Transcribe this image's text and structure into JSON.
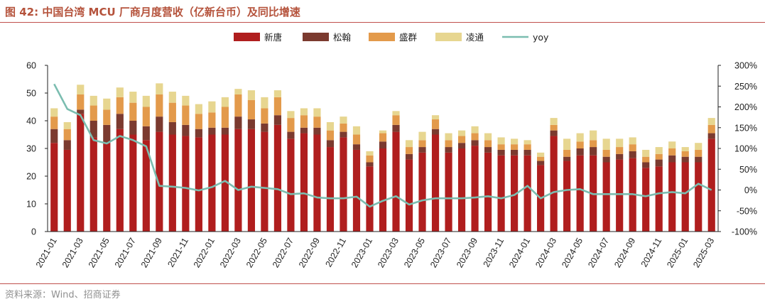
{
  "header": {
    "title": "图 42:  中国台湾 MCU 厂商月度营收（亿新台币）及同比增速"
  },
  "footer": {
    "source": "资料来源：Wind、招商证券"
  },
  "chart_data": {
    "type": "bar",
    "stacked": true,
    "title": "",
    "categories": [
      "2021-01",
      "2021-02",
      "2021-03",
      "2021-04",
      "2021-05",
      "2021-06",
      "2021-07",
      "2021-08",
      "2021-09",
      "2021-10",
      "2021-11",
      "2021-12",
      "2022-01",
      "2022-02",
      "2022-03",
      "2022-04",
      "2022-05",
      "2022-06",
      "2022-07",
      "2022-08",
      "2022-09",
      "2022-10",
      "2022-11",
      "2022-12",
      "2023-01",
      "2023-02",
      "2023-03",
      "2023-04",
      "2023-05",
      "2023-06",
      "2023-07",
      "2023-08",
      "2023-09",
      "2023-10",
      "2023-11",
      "2023-12",
      "2024-01",
      "2024-02",
      "2024-03",
      "2024-04",
      "2024-05",
      "2024-06",
      "2024-07",
      "2024-08",
      "2024-09",
      "2024-10",
      "2024-11",
      "2024-12",
      "2025-01",
      "2025-02",
      "2025-03"
    ],
    "tick_labels": [
      "2021-01",
      "2021-03",
      "2021-05",
      "2021-07",
      "2021-09",
      "2021-11",
      "2022-01",
      "2022-03",
      "2022-05",
      "2022-07",
      "2022-09",
      "2022-11",
      "2023-01",
      "2023-03",
      "2023-05",
      "2023-07",
      "2023-09",
      "2023-11",
      "2024-01",
      "2024-03",
      "2024-05",
      "2024-07",
      "2024-09",
      "2024-11",
      "2025-01",
      "2025-03"
    ],
    "series": [
      {
        "name": "新唐",
        "color": "#b01e1e",
        "values": [
          32,
          29.5,
          42.5,
          34,
          32,
          37,
          35,
          33,
          36,
          35,
          34.5,
          34,
          35,
          35,
          37,
          37,
          36,
          38.5,
          33.5,
          35.5,
          35,
          30.5,
          34,
          29.5,
          23.5,
          30,
          36,
          26,
          28.5,
          35,
          28.5,
          30,
          31,
          28.5,
          27.5,
          27.5,
          27.5,
          24,
          34.5,
          25.5,
          27.5,
          27.5,
          25,
          26,
          26.5,
          23,
          23.5,
          25,
          25,
          25,
          33.5
        ]
      },
      {
        "name": "松翰",
        "color": "#7b3a2f",
        "values": [
          5,
          3.5,
          1.5,
          6,
          6.5,
          5.5,
          5,
          5,
          5.5,
          4.5,
          4,
          3,
          2.5,
          2.5,
          4.5,
          3.5,
          3,
          3.5,
          2.5,
          2,
          2.5,
          2.5,
          2,
          2,
          1.5,
          2.5,
          2.5,
          2,
          2,
          2,
          2,
          2,
          2,
          2,
          2,
          2,
          2,
          1.5,
          2,
          1.5,
          2.5,
          3,
          2,
          2,
          2.5,
          2,
          2.5,
          2.5,
          2,
          2,
          2
        ]
      },
      {
        "name": "盛群",
        "color": "#e39a4b",
        "values": [
          4.5,
          4,
          5.5,
          5.5,
          5.5,
          6,
          6.5,
          7,
          8,
          7,
          7,
          5.5,
          5.5,
          7.5,
          8,
          7,
          5.5,
          6.5,
          5,
          4.5,
          4,
          3.5,
          3,
          3.5,
          2.5,
          3,
          3.5,
          2.5,
          2.5,
          3.5,
          2.5,
          2.5,
          2.5,
          2.5,
          2,
          2,
          2,
          1.5,
          2,
          2.5,
          2.5,
          2.5,
          2.5,
          2.5,
          2.5,
          2,
          2,
          2.5,
          2,
          2.5,
          3
        ]
      },
      {
        "name": "凌通",
        "color": "#e7d690",
        "values": [
          3,
          2.5,
          3.5,
          3.5,
          4,
          3.5,
          4,
          4,
          4,
          4,
          3.5,
          3.5,
          4,
          3.5,
          2,
          3.5,
          4,
          2.5,
          2.5,
          2.5,
          3,
          3,
          2.5,
          3,
          1.5,
          1,
          1.5,
          2.5,
          3,
          1.5,
          2.5,
          2,
          2.5,
          2.5,
          2.5,
          2,
          1.5,
          1.5,
          2.5,
          4,
          3,
          3.5,
          4,
          3,
          2.5,
          2.5,
          2.5,
          2.5,
          1.5,
          2.5,
          2.5
        ]
      },
      {
        "name": "yoy",
        "type": "line",
        "color": "#7bbdb0",
        "axis": "right",
        "unit": "%",
        "values": [
          255,
          195,
          180,
          120,
          112,
          130,
          120,
          105,
          10,
          8,
          5,
          -1,
          7,
          22,
          0,
          8,
          5,
          2,
          -10,
          -8,
          -18,
          -20,
          -20,
          -16,
          -40,
          -26,
          -15,
          -35,
          -25,
          -20,
          -20,
          -20,
          -18,
          -15,
          -20,
          -12,
          10,
          -20,
          -5,
          0,
          2,
          -10,
          -10,
          -10,
          -10,
          -15,
          -8,
          -5,
          -8,
          15,
          0
        ]
      }
    ],
    "ylim": [
      0,
      60
    ],
    "y_ticks": [
      "0",
      "10",
      "20",
      "30",
      "40",
      "50",
      "60"
    ],
    "y2lim": [
      -100,
      300
    ],
    "y2_ticks": [
      "-100%",
      "-50%",
      "0%",
      "50%",
      "100%",
      "150%",
      "200%",
      "250%",
      "300%"
    ],
    "legend_position": "top-center",
    "grid": false
  }
}
